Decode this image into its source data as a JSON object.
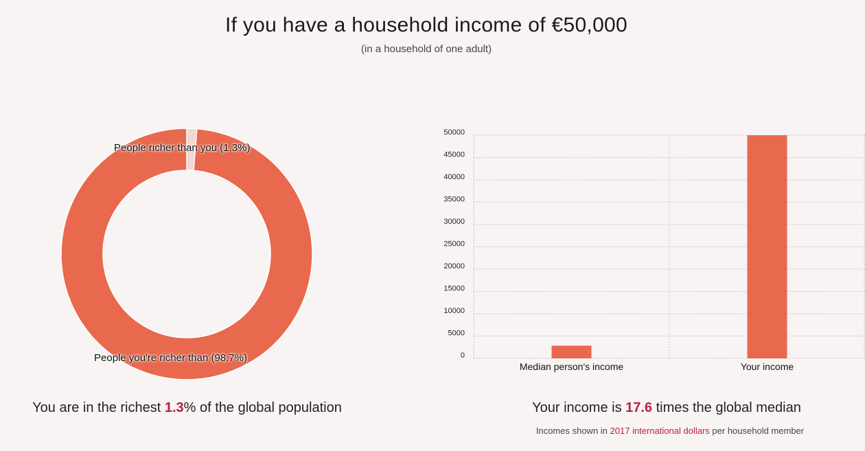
{
  "header": {
    "title": "If you have a household income of €50,000",
    "subtitle": "(in a household of one adult)"
  },
  "donut": {
    "richer_label": "People richer than you (1.3%)",
    "poorer_label": "People you're richer than (98.7%)",
    "caption_before": "You are in the richest ",
    "caption_value": "1.3",
    "caption_after": "% of the global population"
  },
  "bar": {
    "caption_before": "Your income is ",
    "caption_value": "17.6",
    "caption_after": " times the global median",
    "footnote_before": "Incomes shown in ",
    "footnote_link": "2017 international dollars",
    "footnote_after": " per household member"
  },
  "colors": {
    "accent": "#e8694d",
    "richer_slice": "#f3d6cf",
    "highlight": "#b8213e",
    "background": "#f9f4f4"
  },
  "chart_data": [
    {
      "type": "pie",
      "labels": [
        "People richer than you (1.3%)",
        "People you're richer than (98.7%)"
      ],
      "values": [
        1.3,
        98.7
      ],
      "donut": true
    },
    {
      "type": "bar",
      "categories": [
        "Median person's income",
        "Your income"
      ],
      "values": [
        2840,
        50000
      ],
      "ylim": [
        0,
        50000
      ],
      "yticks": [
        0,
        5000,
        10000,
        15000,
        20000,
        25000,
        30000,
        35000,
        40000,
        45000,
        50000
      ],
      "grid": true
    }
  ]
}
